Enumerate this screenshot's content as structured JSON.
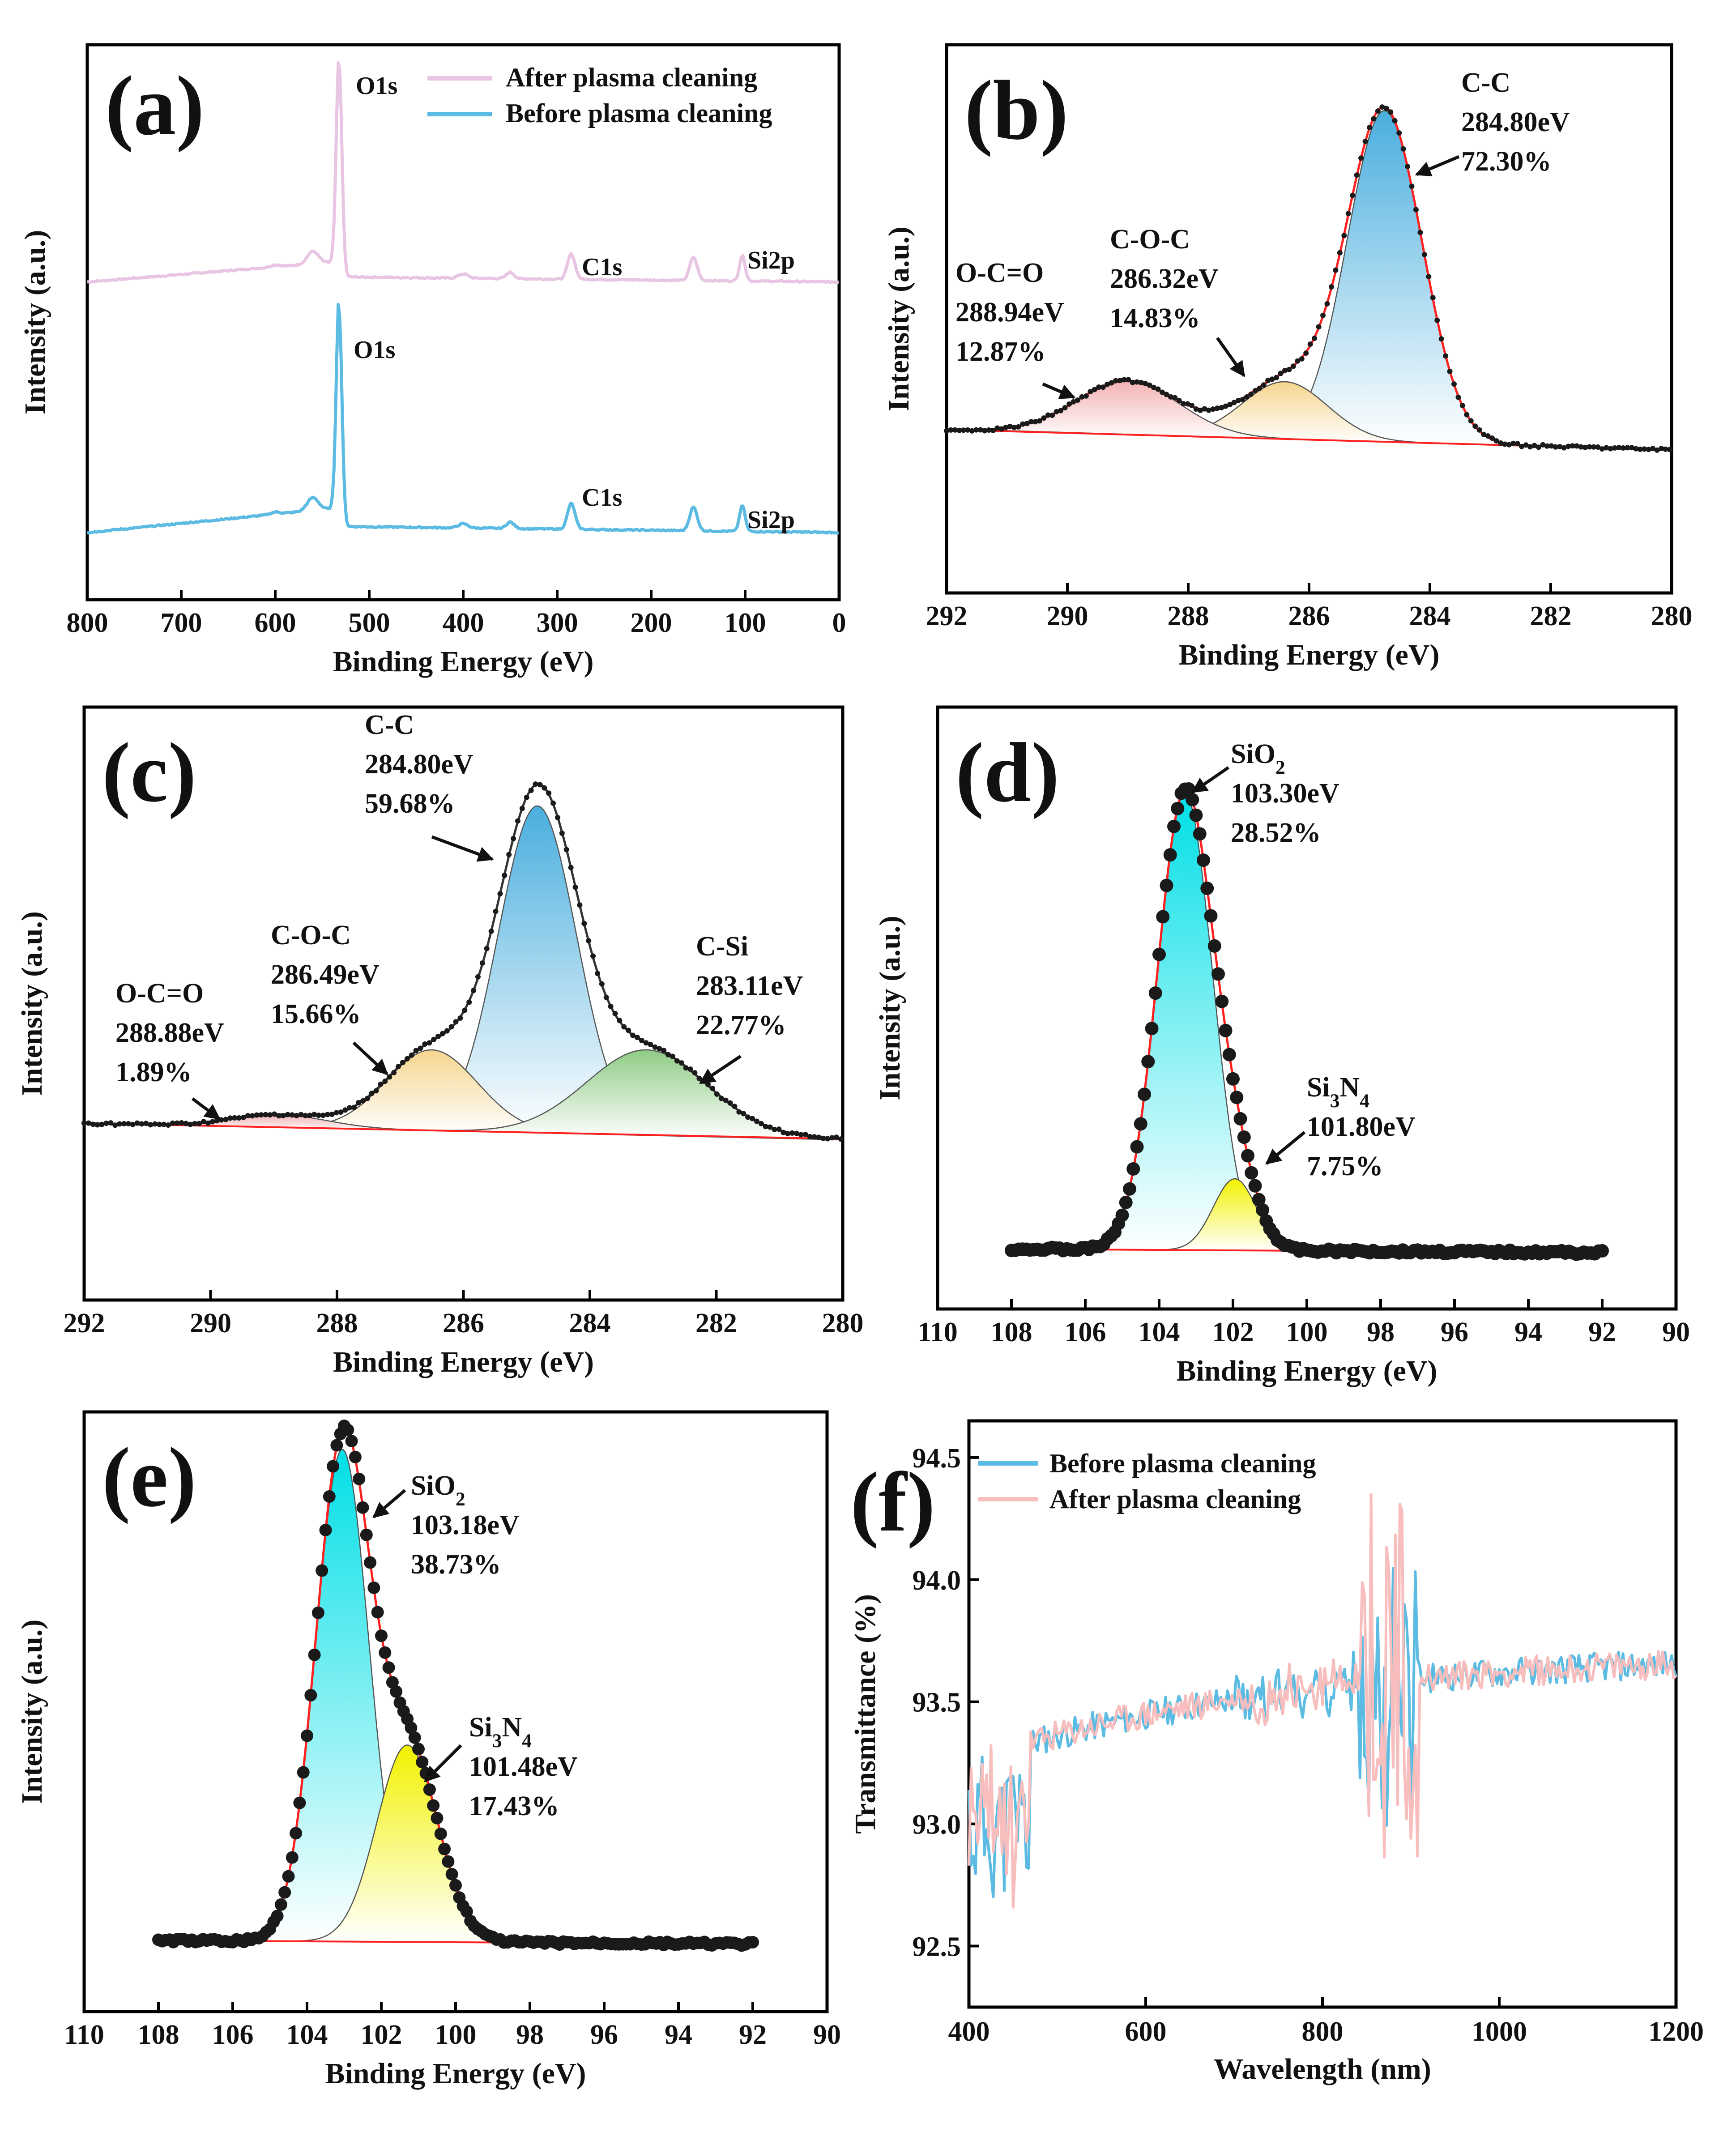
{
  "colors": {
    "after": "#e8c6e3",
    "before": "#5bbbe2",
    "fit": "#ff2020",
    "pts": "#1a1a1a",
    "ftir_before": "#5bbbe2",
    "ftir_after": "#f7bebd"
  },
  "axis_labels": {
    "intensity": "Intensity (a.u.)",
    "binding_energy": "Binding Energy (eV)",
    "transmittance": "Transmittance (%)",
    "wavelength": "Wavelength (nm)"
  },
  "chart_data": [
    {
      "id": "a",
      "panel_label": "(a)",
      "type": "line",
      "xlim": [
        800,
        0
      ],
      "xticks": [
        "800",
        "700",
        "600",
        "500",
        "400",
        "300",
        "200",
        "100",
        "0"
      ],
      "xlabel": "Binding Energy (eV)",
      "ylabel": "Intensity (a.u.)",
      "legend": [
        {
          "name": "After plasma cleaning",
          "color": "after"
        },
        {
          "name": "Before plasma cleaning",
          "color": "before"
        }
      ],
      "series": [
        {
          "name": "After plasma cleaning",
          "offset": 0.7,
          "peaks_eV": [
            532,
            285,
            155,
            103
          ],
          "peak_labels": [
            "O1s",
            "C1s",
            "Si2p"
          ]
        },
        {
          "name": "Before plasma cleaning",
          "offset": 0.12,
          "peaks_eV": [
            532,
            285,
            155,
            103
          ],
          "peak_labels": [
            "O1s",
            "C1s",
            "Si2p"
          ]
        }
      ]
    },
    {
      "id": "b",
      "panel_label": "(b)",
      "type": "xps_fit",
      "xlim": [
        292,
        280
      ],
      "xticks": [
        "292",
        "290",
        "288",
        "286",
        "284",
        "282",
        "280"
      ],
      "xlabel": "Binding Energy (eV)",
      "ylabel": "Intensity (a.u.)",
      "components": [
        {
          "name": "C-C",
          "center_eV": 284.8,
          "percent": 72.3,
          "label_lines": [
            "C-C",
            "284.80eV",
            "72.30%"
          ]
        },
        {
          "name": "C-O-C",
          "center_eV": 286.32,
          "percent": 14.83,
          "label_lines": [
            "C-O-C",
            "286.32eV",
            "14.83%"
          ]
        },
        {
          "name": "O-C=O",
          "center_eV": 288.94,
          "percent": 12.87,
          "label_lines": [
            "O-C=O",
            "288.94eV",
            "12.87%"
          ]
        }
      ]
    },
    {
      "id": "c",
      "panel_label": "(c)",
      "type": "xps_fit",
      "xlim": [
        292,
        280
      ],
      "xticks": [
        "292",
        "290",
        "288",
        "286",
        "284",
        "282",
        "280"
      ],
      "xlabel": "Binding Energy (eV)",
      "ylabel": "Intensity (a.u.)",
      "components": [
        {
          "name": "C-C",
          "center_eV": 284.8,
          "percent": 59.68,
          "label_lines": [
            "C-C",
            "284.80eV",
            "59.68%"
          ]
        },
        {
          "name": "C-O-C",
          "center_eV": 286.49,
          "percent": 15.66,
          "label_lines": [
            "C-O-C",
            "286.49eV",
            "15.66%"
          ]
        },
        {
          "name": "O-C=O",
          "center_eV": 288.88,
          "percent": 1.89,
          "label_lines": [
            "O-C=O",
            "288.88eV",
            "1.89%"
          ]
        },
        {
          "name": "C-Si",
          "center_eV": 283.11,
          "percent": 22.77,
          "label_lines": [
            "C-Si",
            "283.11eV",
            "22.77%"
          ]
        }
      ]
    },
    {
      "id": "d",
      "panel_label": "(d)",
      "type": "xps_fit",
      "xlim": [
        110,
        90
      ],
      "xticks": [
        "110",
        "108",
        "106",
        "104",
        "102",
        "100",
        "98",
        "96",
        "94",
        "92",
        "90"
      ],
      "xlabel": "Binding Energy (eV)",
      "ylabel": "Intensity (a.u.)",
      "components": [
        {
          "name": "SiO2",
          "center_eV": 103.3,
          "percent": 28.52,
          "label_lines": [
            "SiO2",
            "103.30eV",
            "28.52%"
          ]
        },
        {
          "name": "Si3N4",
          "center_eV": 101.8,
          "percent": 7.75,
          "label_lines": [
            "Si3N4",
            "101.80eV",
            "7.75%"
          ]
        }
      ]
    },
    {
      "id": "e",
      "panel_label": "(e)",
      "type": "xps_fit",
      "xlim": [
        110,
        90
      ],
      "xticks": [
        "110",
        "108",
        "106",
        "104",
        "102",
        "100",
        "98",
        "96",
        "94",
        "92",
        "90"
      ],
      "xlabel": "Binding Energy (eV)",
      "ylabel": "Intensity (a.u.)",
      "components": [
        {
          "name": "SiO2",
          "center_eV": 103.18,
          "percent": 38.73,
          "label_lines": [
            "SiO2",
            "103.18eV",
            "38.73%"
          ]
        },
        {
          "name": "Si3N4",
          "center_eV": 101.48,
          "percent": 17.43,
          "label_lines": [
            "Si3N4",
            "101.48eV",
            "17.43%"
          ]
        }
      ]
    },
    {
      "id": "f",
      "panel_label": "(f)",
      "type": "line",
      "xlim": [
        400,
        1200
      ],
      "ylim": [
        92.25,
        94.65
      ],
      "xticks": [
        "400",
        "600",
        "800",
        "1000",
        "1200"
      ],
      "yticks": [
        "92.5",
        "93.0",
        "93.5",
        "94.0",
        "94.5"
      ],
      "xlabel": "Wavelength (nm)",
      "ylabel": "Transmittance (%)",
      "legend": [
        {
          "name": "Before plasma cleaning",
          "color": "ftir_before"
        },
        {
          "name": "After plasma cleaning",
          "color": "ftir_after"
        }
      ]
    }
  ]
}
